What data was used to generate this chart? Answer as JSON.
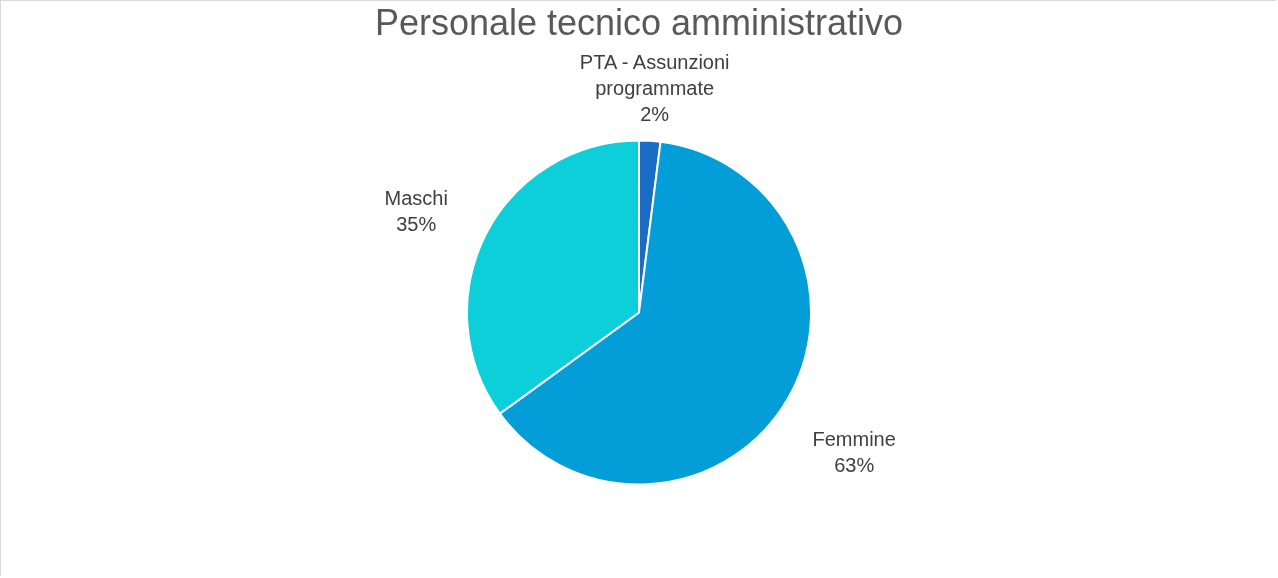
{
  "chart_data": {
    "type": "pie",
    "title": "Personale tecnico amministrativo",
    "categories": [
      "PTA - Assunzioni programmate",
      "Femmine",
      "Maschi"
    ],
    "values": [
      2,
      63,
      35
    ],
    "value_labels": [
      "2%",
      "63%",
      "35%"
    ],
    "colors": [
      "#1a6cc4",
      "#039dd8",
      "#0ccfda"
    ]
  }
}
